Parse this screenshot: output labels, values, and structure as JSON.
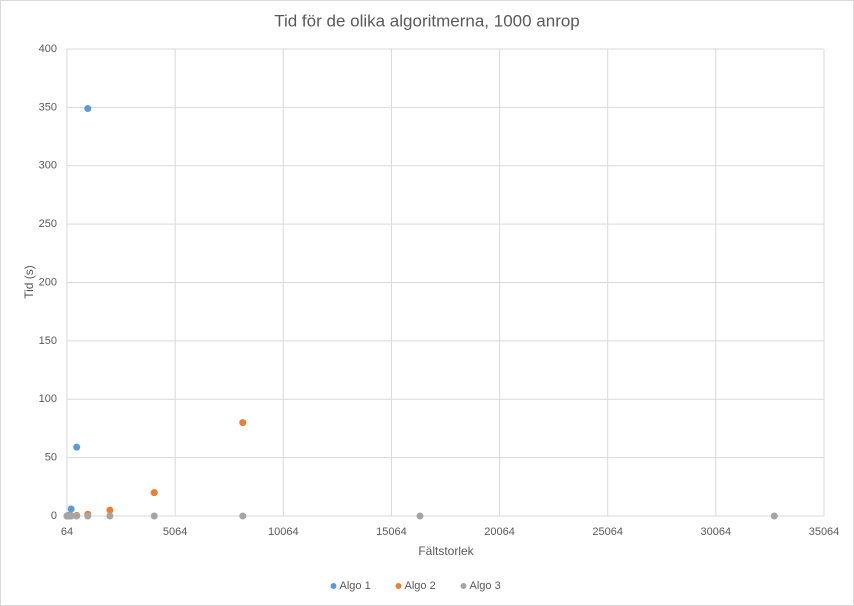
{
  "chart_data": {
    "type": "scatter",
    "title": "Tid för de olika algoritmerna, 1000 anrop",
    "x_label": "Fältstorlek",
    "y_label": "Tid (s)",
    "x": [
      64,
      128,
      256,
      512,
      1024,
      2048,
      4096,
      8192,
      16384,
      32768
    ],
    "series": [
      {
        "name": "Algo 1",
        "color": "#5b9bd5",
        "values": [
          0,
          0.5,
          6,
          59,
          349,
          null,
          null,
          null,
          null,
          null
        ]
      },
      {
        "name": "Algo 2",
        "color": "#ed7d31",
        "values": [
          0,
          0,
          0.2,
          0.5,
          1.5,
          5,
          20,
          80,
          null,
          null
        ]
      },
      {
        "name": "Algo 3",
        "color": "#a5a5a5",
        "values": [
          0,
          0,
          0,
          0,
          0,
          0,
          0,
          0,
          0,
          0
        ]
      }
    ],
    "xlim": [
      64,
      35064
    ],
    "xticks": [
      64,
      5064,
      10064,
      15064,
      20064,
      25064,
      30064,
      35064
    ],
    "ylim": [
      0,
      400
    ],
    "yticks": [
      0,
      50,
      100,
      150,
      200,
      250,
      300,
      350,
      400
    ],
    "grid": true,
    "legend": "bottom"
  }
}
